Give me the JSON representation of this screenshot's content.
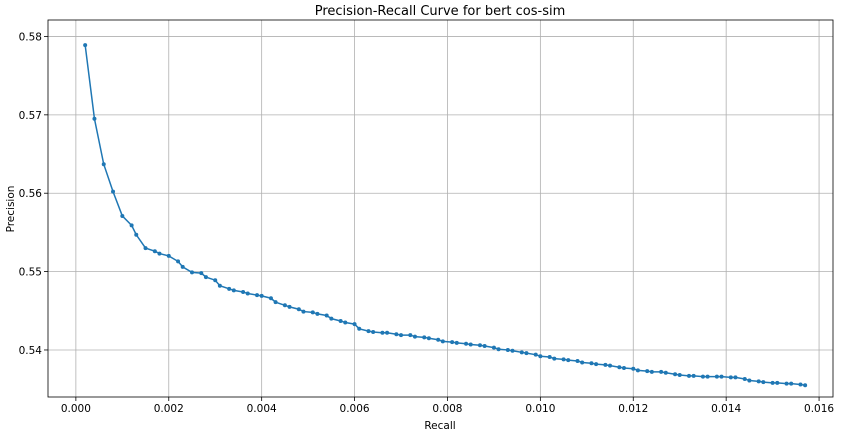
{
  "chart_data": {
    "type": "line",
    "title": "Precision-Recall Curve for bert cos-sim",
    "xlabel": "Recall",
    "ylabel": "Precision",
    "xlim": [
      -0.0006,
      0.0163
    ],
    "ylim": [
      0.534,
      0.5821
    ],
    "grid": true,
    "xticks": [
      0.0,
      0.002,
      0.004,
      0.006,
      0.008,
      0.01,
      0.012,
      0.014,
      0.016
    ],
    "xtick_labels": [
      "0.000",
      "0.002",
      "0.004",
      "0.006",
      "0.008",
      "0.010",
      "0.012",
      "0.014",
      "0.016"
    ],
    "yticks": [
      0.54,
      0.55,
      0.56,
      0.57,
      0.58
    ],
    "ytick_labels": [
      "0.54",
      "0.55",
      "0.56",
      "0.57",
      "0.58"
    ],
    "color": "#1f77b4",
    "series": [
      {
        "x": [
          0.0002,
          0.0004,
          0.0006,
          0.0008,
          0.001,
          0.0012,
          0.0013,
          0.0015,
          0.0017,
          0.0018,
          0.002,
          0.0022,
          0.0023,
          0.0025,
          0.0027,
          0.0028,
          0.003,
          0.0031,
          0.0033,
          0.0034,
          0.0036,
          0.0037,
          0.0039,
          0.004,
          0.0042,
          0.0043,
          0.0045,
          0.0046,
          0.0048,
          0.0049,
          0.0051,
          0.0052,
          0.0054,
          0.0055,
          0.0057,
          0.0058,
          0.006,
          0.0061,
          0.0063,
          0.0064,
          0.0066,
          0.0067,
          0.0069,
          0.007,
          0.0072,
          0.0073,
          0.0075,
          0.0076,
          0.0078,
          0.0079,
          0.0081,
          0.0082,
          0.0084,
          0.0085,
          0.0087,
          0.0088,
          0.009,
          0.0091,
          0.0093,
          0.0094,
          0.0096,
          0.0097,
          0.0099,
          0.01,
          0.0102,
          0.0103,
          0.0105,
          0.0106,
          0.0108,
          0.0109,
          0.0111,
          0.0112,
          0.0114,
          0.0115,
          0.0117,
          0.0118,
          0.012,
          0.0121,
          0.0123,
          0.0124,
          0.0126,
          0.0127,
          0.0129,
          0.013,
          0.0132,
          0.0133,
          0.0135,
          0.0136,
          0.0138,
          0.0139,
          0.0141,
          0.0142,
          0.0144,
          0.0145,
          0.0147,
          0.0148,
          0.015,
          0.0151,
          0.0153,
          0.0154,
          0.0156,
          0.0157
        ],
        "y": [
          0.5789,
          0.5695,
          0.5637,
          0.5602,
          0.5571,
          0.5559,
          0.5547,
          0.553,
          0.5526,
          0.5523,
          0.552,
          0.5513,
          0.5506,
          0.5499,
          0.5498,
          0.5493,
          0.5489,
          0.5482,
          0.5478,
          0.5476,
          0.5474,
          0.5472,
          0.547,
          0.5469,
          0.5466,
          0.5461,
          0.5457,
          0.5455,
          0.5452,
          0.5449,
          0.5448,
          0.5446,
          0.5444,
          0.544,
          0.5437,
          0.5435,
          0.5433,
          0.5427,
          0.5424,
          0.5423,
          0.5422,
          0.5422,
          0.542,
          0.5419,
          0.5419,
          0.5417,
          0.5416,
          0.5415,
          0.5413,
          0.5411,
          0.541,
          0.5409,
          0.5408,
          0.5407,
          0.5406,
          0.5405,
          0.5403,
          0.5401,
          0.54,
          0.5399,
          0.5397,
          0.5396,
          0.5394,
          0.5392,
          0.5391,
          0.5389,
          0.5388,
          0.5387,
          0.5386,
          0.5384,
          0.5383,
          0.5382,
          0.5381,
          0.538,
          0.5378,
          0.5377,
          0.5376,
          0.5374,
          0.5373,
          0.5372,
          0.5372,
          0.5371,
          0.5369,
          0.5368,
          0.5367,
          0.5367,
          0.5366,
          0.5366,
          0.5366,
          0.5366,
          0.5365,
          0.5365,
          0.5363,
          0.5361,
          0.536,
          0.5359,
          0.5358,
          0.5358,
          0.5357,
          0.5357,
          0.5356,
          0.5355
        ]
      }
    ]
  }
}
